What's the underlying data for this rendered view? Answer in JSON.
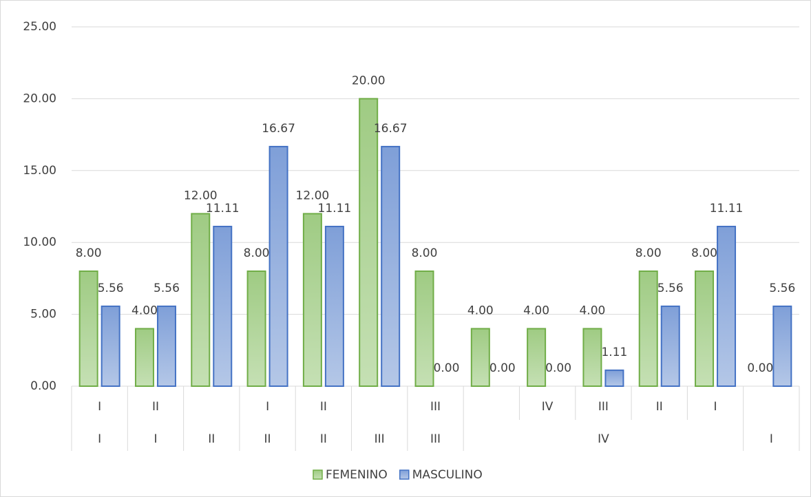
{
  "chart_data": {
    "type": "bar",
    "categories": [
      "I",
      "II",
      null,
      "I",
      "II",
      null,
      "III",
      null,
      "IV",
      "III",
      "II",
      "I",
      null
    ],
    "outer_categories": [
      "I",
      "I",
      "II",
      "II",
      "II",
      "III",
      "III",
      "IV",
      null,
      null,
      null,
      null,
      "I"
    ],
    "series": [
      {
        "name": "FEMENINO",
        "color": "#70ad47",
        "fill": "#a9d18e",
        "values": [
          8,
          4,
          12,
          8,
          12,
          20,
          8,
          4,
          4,
          4,
          8,
          8,
          0
        ],
        "value_labels": [
          "8.00",
          "4.00",
          "12.00",
          "8.00",
          "12.00",
          "20.00",
          "8.00",
          "4.00",
          "4.00",
          "4.00",
          "8.00",
          "8.00",
          "0.00"
        ]
      },
      {
        "name": "MASCULINO",
        "color": "#4472c4",
        "fill": "#8faadc",
        "values": [
          5.56,
          5.56,
          11.11,
          16.67,
          11.11,
          16.67,
          0,
          0,
          0,
          1.11,
          5.56,
          11.11,
          5.56
        ],
        "value_labels": [
          "5.56",
          "5.56",
          "11.11",
          "16.67",
          "11.11",
          "16.67",
          "0.00",
          "0.00",
          "0.00",
          "1.11",
          "5.56",
          "11.11",
          "5.56"
        ]
      }
    ],
    "ylim": [
      0,
      25
    ],
    "yticks": [
      {
        "value": 0,
        "label": "0.00"
      },
      {
        "value": 5,
        "label": "5.00"
      },
      {
        "value": 10,
        "label": "10.00"
      },
      {
        "value": 15,
        "label": "15.00"
      },
      {
        "value": 20,
        "label": "20.00"
      },
      {
        "value": 25,
        "label": "25.00"
      }
    ],
    "grid": true,
    "legend": "bottom"
  }
}
